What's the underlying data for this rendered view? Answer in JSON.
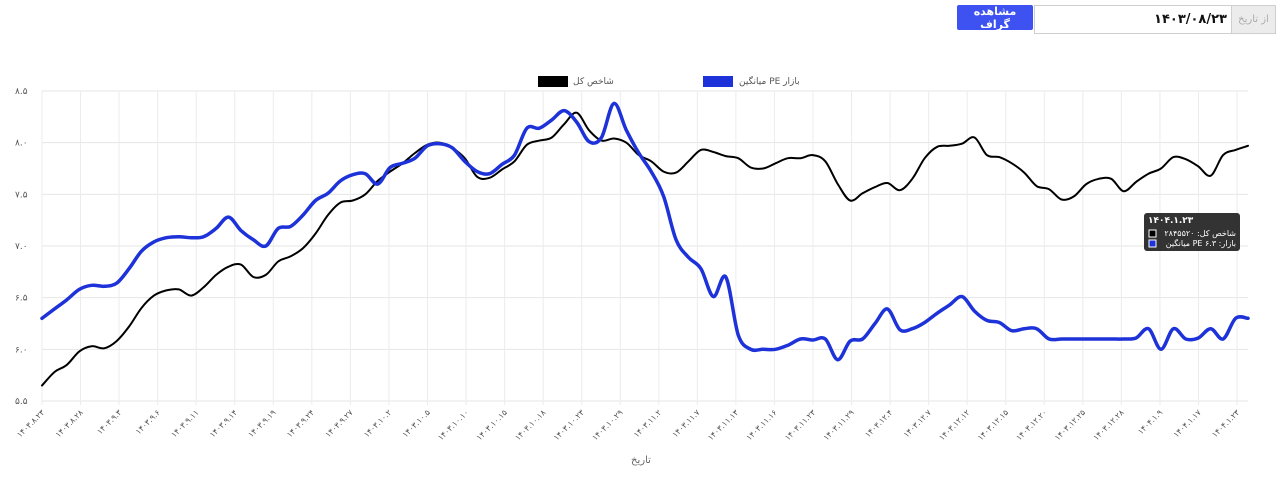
{
  "controls": {
    "show_button_label": "مشاهده گراف",
    "date_value": "۱۴۰۳/۰۸/۲۳",
    "date_prefix": "از تاریخ"
  },
  "tooltip": {
    "date": "۱۴۰۴.۱.۲۳",
    "line1": "شاخص کل: ۲۸۴۵۵۲۰",
    "line2": "میانگین PE بازار: ۶.۳"
  },
  "chart_data": {
    "type": "line",
    "xlabel": "تاریخ",
    "ylabel": "",
    "ylim": [
      5.5,
      8.5
    ],
    "yticks": [
      {
        "value": 8.5,
        "label": "۸.۵"
      },
      {
        "value": 8.0,
        "label": "۸.۰"
      },
      {
        "value": 7.5,
        "label": "۷.۵"
      },
      {
        "value": 7.0,
        "label": "۷.۰"
      },
      {
        "value": 6.5,
        "label": "۶.۵"
      },
      {
        "value": 6.0,
        "label": "۶.۰"
      },
      {
        "value": 5.5,
        "label": "۵.۵"
      }
    ],
    "xticks": [
      "۱۴۰۳.۸.۲۳",
      "۱۴۰۳.۸.۲۸",
      "۱۴۰۳.۹.۳",
      "۱۴۰۳.۹.۶",
      "۱۴۰۳.۹.۱۱",
      "۱۴۰۳.۹.۱۴",
      "۱۴۰۳.۹.۱۹",
      "۱۴۰۳.۹.۲۴",
      "۱۴۰۳.۹.۲۷",
      "۱۴۰۳.۱۰.۲",
      "۱۴۰۳.۱۰.۵",
      "۱۴۰۳.۱۰.۱۰",
      "۱۴۰۳.۱۰.۱۵",
      "۱۴۰۳.۱۰.۱۸",
      "۱۴۰۳.۱۰.۲۳",
      "۱۴۰۳.۱۰.۲۹",
      "۱۴۰۳.۱۱.۲",
      "۱۴۰۳.۱۱.۷",
      "۱۴۰۳.۱۱.۱۳",
      "۱۴۰۳.۱۱.۱۶",
      "۱۴۰۳.۱۱.۲۳",
      "۱۴۰۳.۱۱.۲۹",
      "۱۴۰۳.۱۲.۴",
      "۱۴۰۳.۱۲.۷",
      "۱۴۰۳.۱۲.۱۲",
      "۱۴۰۳.۱۲.۱۵",
      "۱۴۰۳.۱۲.۲۰",
      "۱۴۰۳.۱۲.۲۵",
      "۱۴۰۳.۱۲.۲۸",
      "۱۴۰۴.۱.۹",
      "۱۴۰۴.۱.۱۷",
      "۱۴۰۴.۱.۲۳"
    ],
    "grid": true,
    "legend": "top-center",
    "series": [
      {
        "name": "شاخص کل",
        "color": "#000000",
        "values": [
          5.65,
          5.78,
          5.85,
          5.98,
          6.03,
          6.01,
          6.08,
          6.22,
          6.4,
          6.52,
          6.57,
          6.58,
          6.52,
          6.6,
          6.72,
          6.8,
          6.82,
          6.7,
          6.72,
          6.85,
          6.9,
          6.98,
          7.12,
          7.3,
          7.42,
          7.44,
          7.5,
          7.63,
          7.72,
          7.8,
          7.9,
          7.98,
          8.0,
          7.95,
          7.85,
          7.67,
          7.66,
          7.74,
          7.82,
          7.98,
          8.02,
          8.05,
          8.18,
          8.29,
          8.12,
          8.02,
          8.04,
          8.0,
          7.88,
          7.82,
          7.72,
          7.71,
          7.82,
          7.93,
          7.91,
          7.87,
          7.85,
          7.76,
          7.75,
          7.8,
          7.85,
          7.85,
          7.88,
          7.82,
          7.6,
          7.44,
          7.51,
          7.57,
          7.61,
          7.54,
          7.65,
          7.85,
          7.96,
          7.97,
          7.99,
          8.05,
          7.88,
          7.86,
          7.8,
          7.71,
          7.58,
          7.55,
          7.45,
          7.48,
          7.6,
          7.65,
          7.65,
          7.53,
          7.62,
          7.7,
          7.75,
          7.86,
          7.84,
          7.77,
          7.68,
          7.88,
          7.93,
          7.97
        ]
      },
      {
        "name": "میانگین PE بازار",
        "color": "#1d32d8",
        "values": [
          6.3,
          6.39,
          6.48,
          6.58,
          6.62,
          6.61,
          6.64,
          6.78,
          6.95,
          7.04,
          7.08,
          7.09,
          7.08,
          7.09,
          7.17,
          7.28,
          7.15,
          7.06,
          7.0,
          7.17,
          7.19,
          7.3,
          7.44,
          7.51,
          7.63,
          7.69,
          7.7,
          7.6,
          7.76,
          7.8,
          7.85,
          7.97,
          7.99,
          7.95,
          7.82,
          7.72,
          7.7,
          7.79,
          7.88,
          8.14,
          8.14,
          8.22,
          8.31,
          8.2,
          8.01,
          8.05,
          8.38,
          8.12,
          7.9,
          7.72,
          7.48,
          7.06,
          6.89,
          6.78,
          6.51,
          6.7,
          6.14,
          6.0,
          6.0,
          6.0,
          6.04,
          6.1,
          6.09,
          6.1,
          5.9,
          6.08,
          6.1,
          6.25,
          6.39,
          6.19,
          6.2,
          6.26,
          6.35,
          6.43,
          6.51,
          6.37,
          6.28,
          6.26,
          6.18,
          6.2,
          6.2,
          6.1,
          6.1,
          6.1,
          6.1,
          6.1,
          6.1,
          6.1,
          6.11,
          6.2,
          6.0,
          6.2,
          6.1,
          6.11,
          6.2,
          6.1,
          6.3,
          6.3
        ]
      }
    ]
  }
}
